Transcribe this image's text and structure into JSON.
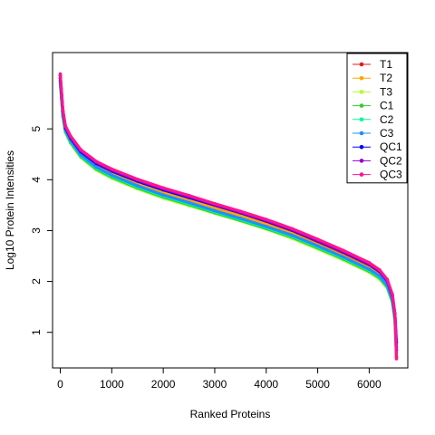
{
  "chart_data": {
    "type": "line",
    "title": "",
    "xlabel": "Ranked Proteins",
    "ylabel": "Log10 Protein Intensities",
    "xlim": [
      -150,
      6750
    ],
    "ylim": [
      0.3,
      6.5
    ],
    "x_ticks": [
      0,
      1000,
      2000,
      3000,
      4000,
      5000,
      6000
    ],
    "y_ticks": [
      1,
      2,
      3,
      4,
      5
    ],
    "grid": false,
    "legend_position": "top-right",
    "x": [
      0,
      50,
      100,
      200,
      400,
      700,
      1000,
      1500,
      2000,
      2500,
      3000,
      3500,
      4000,
      4500,
      5000,
      5500,
      6000,
      6200,
      6350,
      6450,
      6500,
      6530
    ],
    "series": [
      {
        "name": "T1",
        "color": "#E41A1C",
        "values": [
          6.05,
          5.35,
          5.02,
          4.82,
          4.55,
          4.32,
          4.16,
          3.95,
          3.77,
          3.62,
          3.46,
          3.31,
          3.14,
          2.96,
          2.74,
          2.52,
          2.28,
          2.14,
          1.95,
          1.65,
          1.28,
          0.52
        ]
      },
      {
        "name": "T2",
        "color": "#FFA500",
        "values": [
          6.0,
          5.32,
          5.0,
          4.8,
          4.53,
          4.3,
          4.14,
          3.93,
          3.75,
          3.6,
          3.44,
          3.29,
          3.12,
          2.94,
          2.72,
          2.5,
          2.26,
          2.12,
          1.93,
          1.63,
          1.26,
          0.5
        ]
      },
      {
        "name": "T3",
        "color": "#ADFF2F",
        "values": [
          5.88,
          5.24,
          4.93,
          4.72,
          4.44,
          4.19,
          4.03,
          3.82,
          3.64,
          3.49,
          3.34,
          3.19,
          3.03,
          2.85,
          2.64,
          2.42,
          2.18,
          2.05,
          1.87,
          1.58,
          1.22,
          0.55
        ]
      },
      {
        "name": "C1",
        "color": "#32CD32",
        "values": [
          5.9,
          5.25,
          4.94,
          4.73,
          4.45,
          4.21,
          4.05,
          3.84,
          3.66,
          3.51,
          3.35,
          3.2,
          3.04,
          2.87,
          2.66,
          2.44,
          2.2,
          2.07,
          1.89,
          1.6,
          1.24,
          0.6
        ]
      },
      {
        "name": "C2",
        "color": "#00FA9A",
        "values": [
          5.93,
          5.28,
          4.96,
          4.75,
          4.47,
          4.23,
          4.07,
          3.86,
          3.68,
          3.53,
          3.37,
          3.22,
          3.06,
          2.89,
          2.68,
          2.46,
          2.22,
          2.09,
          1.9,
          1.62,
          1.26,
          0.65
        ]
      },
      {
        "name": "C3",
        "color": "#1E90FF",
        "values": [
          5.95,
          5.3,
          4.98,
          4.77,
          4.49,
          4.25,
          4.09,
          3.88,
          3.7,
          3.55,
          3.39,
          3.24,
          3.08,
          2.91,
          2.7,
          2.48,
          2.24,
          2.11,
          1.92,
          1.64,
          1.28,
          0.7
        ]
      },
      {
        "name": "QC1",
        "color": "#0000FF",
        "values": [
          6.0,
          5.34,
          5.02,
          4.82,
          4.55,
          4.32,
          4.17,
          3.97,
          3.8,
          3.65,
          3.5,
          3.35,
          3.19,
          3.01,
          2.8,
          2.58,
          2.34,
          2.2,
          2.01,
          1.72,
          1.35,
          0.8
        ]
      },
      {
        "name": "QC2",
        "color": "#9400D3",
        "values": [
          6.05,
          5.36,
          5.04,
          4.84,
          4.57,
          4.34,
          4.19,
          3.99,
          3.82,
          3.67,
          3.51,
          3.36,
          3.2,
          3.02,
          2.81,
          2.59,
          2.35,
          2.21,
          2.02,
          1.73,
          1.36,
          0.65
        ]
      },
      {
        "name": "QC3",
        "color": "#FF1493",
        "values": [
          6.08,
          5.38,
          5.06,
          4.86,
          4.59,
          4.36,
          4.21,
          4.01,
          3.84,
          3.69,
          3.53,
          3.38,
          3.22,
          3.04,
          2.83,
          2.61,
          2.37,
          2.23,
          2.04,
          1.75,
          1.37,
          0.48
        ]
      }
    ]
  }
}
